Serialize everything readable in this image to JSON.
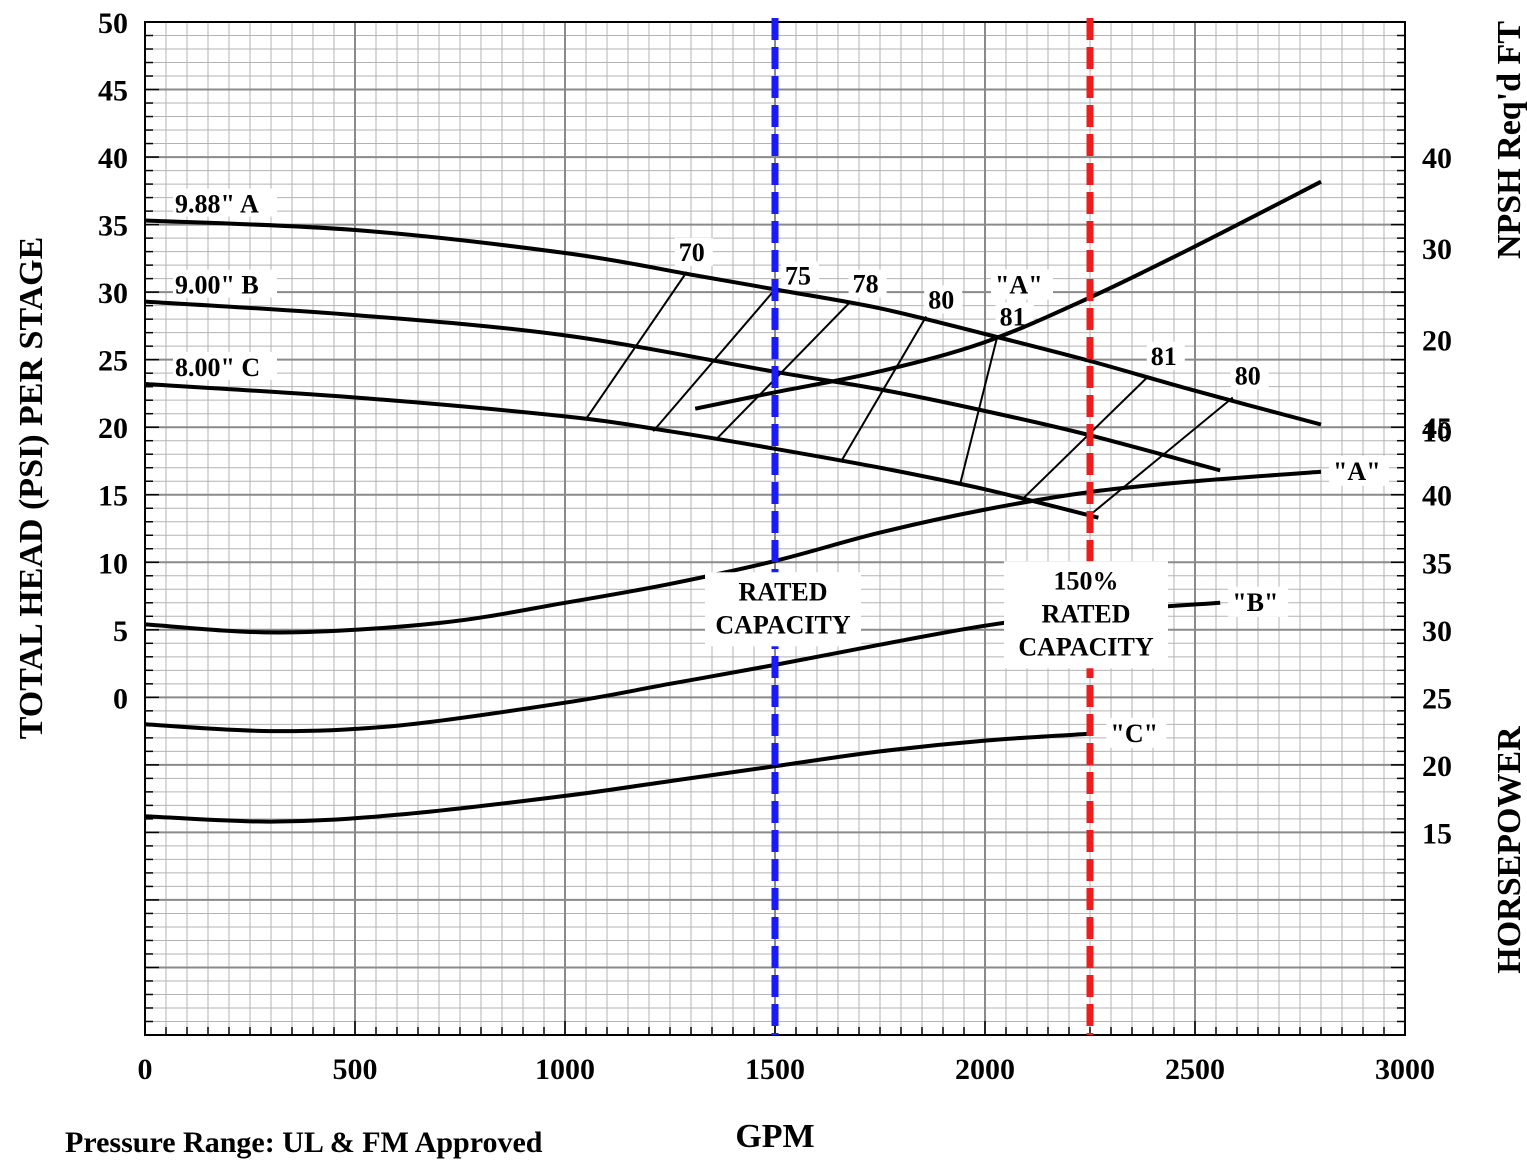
{
  "chart_data": {
    "type": "line",
    "xlabel": "GPM",
    "ylabel_left": "TOTAL HEAD  (PSI)   PER STAGE",
    "ylabel_right_top": "NPSH Req'd  FT",
    "ylabel_right_bottom": "HORSEPOWER",
    "footnote": "Pressure Range: UL & FM Approved",
    "xlim": [
      0,
      3000
    ],
    "x_ticks": [
      "0",
      "500",
      "1000",
      "1500",
      "2000",
      "2500",
      "3000"
    ],
    "ylim_head": [
      -25,
      50
    ],
    "head_ticks": [
      "50",
      "45",
      "40",
      "35",
      "30",
      "25",
      "20",
      "15",
      "10",
      "5",
      "0"
    ],
    "npsh_ticks": [
      "40",
      "30",
      "20",
      "10"
    ],
    "hp_ticks": [
      "45",
      "40",
      "35",
      "30",
      "25",
      "20",
      "15"
    ],
    "grid": true,
    "head_series": [
      {
        "name": "9.88\" A",
        "x": [
          0,
          500,
          1000,
          1300,
          1500,
          1750,
          2000,
          2250,
          2500,
          2800
        ],
        "y": [
          35.3,
          34.6,
          32.9,
          31.3,
          30.2,
          28.8,
          26.9,
          24.9,
          22.7,
          20.2
        ]
      },
      {
        "name": "9.00\" B",
        "x": [
          0,
          500,
          1000,
          1500,
          1750,
          2000,
          2250,
          2560
        ],
        "y": [
          29.3,
          28.3,
          26.8,
          24.1,
          22.8,
          21.2,
          19.4,
          16.8
        ]
      },
      {
        "name": "8.00\" C",
        "x": [
          0,
          500,
          1000,
          1250,
          1500,
          1750,
          2000,
          2270
        ],
        "y": [
          23.2,
          22.2,
          20.8,
          19.7,
          18.4,
          17.0,
          15.4,
          13.3
        ]
      }
    ],
    "npsh_series": [
      {
        "name": "\"A\"",
        "x": [
          1310,
          1500,
          1750,
          2000,
          2250,
          2500,
          2800
        ],
        "y": [
          12.4,
          14.2,
          16.5,
          19.7,
          24.6,
          30.2,
          37.3
        ]
      }
    ],
    "hp_series": [
      {
        "name": "\"A\"",
        "x": [
          0,
          320,
          700,
          1000,
          1250,
          1500,
          1750,
          2000,
          2250,
          2500,
          2800
        ],
        "y": [
          30.4,
          29.8,
          30.5,
          32.0,
          33.4,
          35.1,
          37.2,
          38.9,
          40.2,
          41.0,
          41.7
        ]
      },
      {
        "name": "\"B\"",
        "x": [
          0,
          300,
          600,
          1000,
          1250,
          1500,
          1750,
          2000,
          2250,
          2560
        ],
        "y": [
          23.0,
          22.5,
          22.9,
          24.6,
          26.0,
          27.4,
          28.9,
          30.3,
          31.3,
          32.0
        ]
      },
      {
        "name": "\"C\"",
        "x": [
          0,
          300,
          600,
          1000,
          1250,
          1500,
          1750,
          2000,
          2250
        ],
        "y": [
          16.2,
          15.8,
          16.3,
          17.7,
          18.8,
          19.9,
          21.0,
          21.8,
          22.3
        ]
      }
    ],
    "efficiency_curves": [
      {
        "label": "70",
        "x": [
          1290,
          1050
        ],
        "head": [
          31.5,
          20.6
        ]
      },
      {
        "label": "75",
        "x": [
          1500,
          1210
        ],
        "head": [
          30.2,
          19.7
        ]
      },
      {
        "label": "78",
        "x": [
          1680,
          1360
        ],
        "head": [
          29.3,
          19.1
        ]
      },
      {
        "label": "80",
        "x": [
          1860,
          1660
        ],
        "head": [
          28.2,
          17.6
        ]
      },
      {
        "label": "81",
        "x": [
          2030,
          1940
        ],
        "head": [
          26.8,
          15.7
        ]
      },
      {
        "label": "81",
        "x": [
          2390,
          2090
        ],
        "head": [
          23.8,
          14.7
        ]
      },
      {
        "label": "80",
        "x": [
          2590,
          2250
        ],
        "head": [
          22.2,
          13.5
        ]
      }
    ],
    "markers": [
      {
        "label_lines": [
          "RATED",
          "CAPACITY"
        ],
        "x": 1500,
        "color": "#1a1aff"
      },
      {
        "label_lines": [
          "150%",
          "RATED",
          "CAPACITY"
        ],
        "x": 2250,
        "color": "#ee1c1c"
      }
    ]
  }
}
